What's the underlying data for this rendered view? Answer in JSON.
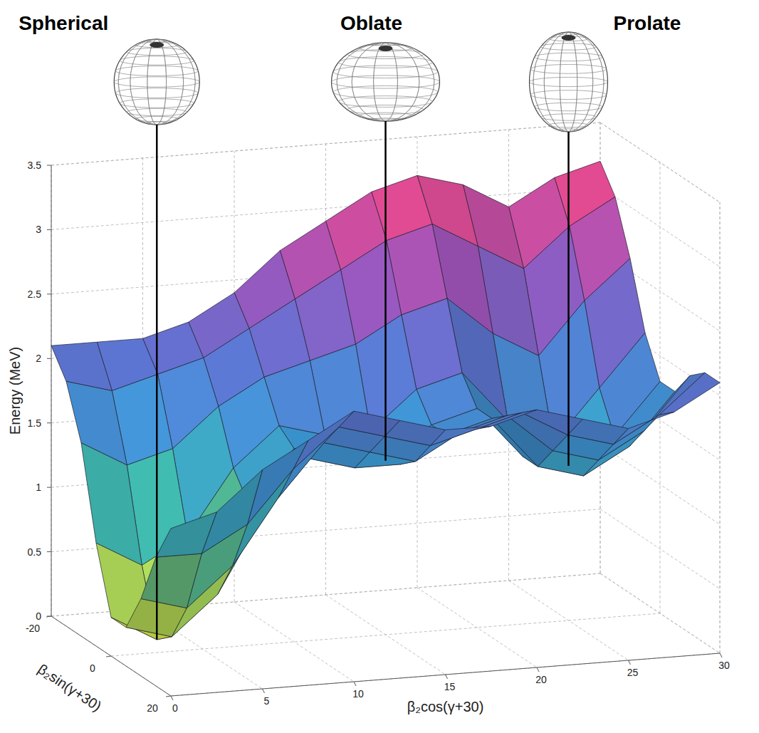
{
  "chart_data": {
    "type": "surface",
    "x_label": "β₂cos(γ+30)",
    "y_label": "β₂sin(γ+30)",
    "z_label": "Energy (MeV)",
    "x": [
      0,
      2.5,
      5,
      7.5,
      10,
      12.5,
      15,
      17.5,
      20,
      22.5,
      25,
      27.5,
      30
    ],
    "y": [
      -20,
      -15,
      -10,
      -5,
      0,
      5,
      10,
      15,
      20
    ],
    "z": [
      [
        2.1,
        2.1,
        2.1,
        2.2,
        2.4,
        2.7,
        2.9,
        3.1,
        3.2,
        3.1,
        2.9,
        3.1,
        3.2
      ],
      [
        1.9,
        1.8,
        1.9,
        2.0,
        2.2,
        2.4,
        2.6,
        2.8,
        2.9,
        2.7,
        2.5,
        2.8,
        3.0
      ],
      [
        1.5,
        1.3,
        1.4,
        1.7,
        1.9,
        2.0,
        2.1,
        2.3,
        2.4,
        2.1,
        1.9,
        2.3,
        2.6
      ],
      [
        0.8,
        0.6,
        0.8,
        1.3,
        1.6,
        1.5,
        1.5,
        1.8,
        1.9,
        1.5,
        1.3,
        1.7,
        2.1
      ],
      [
        0.3,
        0.1,
        0.4,
        1.1,
        1.5,
        1.4,
        1.35,
        1.6,
        1.7,
        1.3,
        1.2,
        1.4,
        1.8
      ],
      [
        0.3,
        0.2,
        0.5,
        1.1,
        1.5,
        1.4,
        1.4,
        1.6,
        1.7,
        1.3,
        1.2,
        1.4,
        1.8
      ],
      [
        0.6,
        0.5,
        0.8,
        1.3,
        1.7,
        1.6,
        1.5,
        1.7,
        1.8,
        1.5,
        1.4,
        1.6,
        2.0
      ],
      [
        1.0,
        1.0,
        1.2,
        1.6,
        1.9,
        1.8,
        1.7,
        1.8,
        1.9,
        1.7,
        1.6,
        1.8,
        2.1
      ],
      [
        1.3,
        1.4,
        1.7,
        1.9,
        2.1,
        2.0,
        1.9,
        1.9,
        2.0,
        1.9,
        1.8,
        1.9,
        2.1
      ]
    ],
    "xlim": [
      0,
      30
    ],
    "ylim": [
      -20,
      20
    ],
    "zlim": [
      0,
      3.5
    ],
    "xticks": [
      0,
      5,
      10,
      15,
      20,
      25,
      30
    ],
    "yticks": [
      -20,
      0,
      20
    ],
    "zticks": [
      0,
      0.5,
      1,
      1.5,
      2,
      2.5,
      3,
      3.5
    ],
    "grid": true,
    "annotations": [
      {
        "text": "Spherical",
        "x": 2.5,
        "y": 0
      },
      {
        "text": "Oblate",
        "x": 15,
        "y": 0
      },
      {
        "text": "Prolate",
        "x": 25,
        "y": 0
      }
    ]
  }
}
